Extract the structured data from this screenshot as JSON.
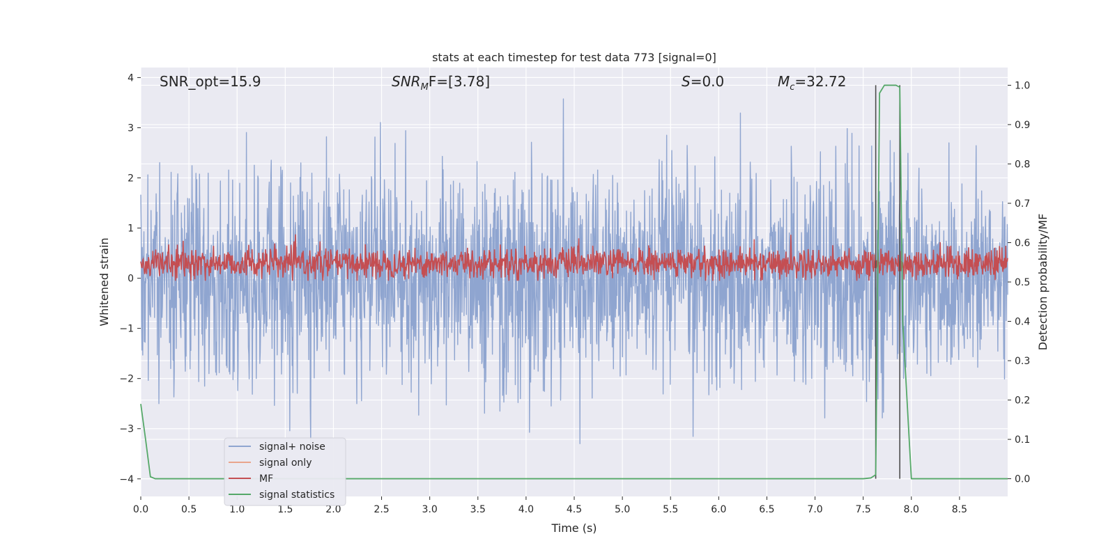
{
  "chart_data": {
    "type": "line",
    "title": "stats at each timestep for test data 773 [signal=0]",
    "xlabel": "Time (s)",
    "ylabel": "Whitened strain",
    "y2label": "Detection probability/MF",
    "xlim": [
      0.0,
      9.0
    ],
    "ylim": [
      -4.35,
      4.2
    ],
    "y2lim": [
      -0.045,
      1.045
    ],
    "xticks": [
      "0.0",
      "0.5",
      "1.0",
      "1.5",
      "2.0",
      "2.5",
      "3.0",
      "3.5",
      "4.0",
      "4.5",
      "5.0",
      "5.5",
      "6.0",
      "6.5",
      "7.0",
      "7.5",
      "8.0",
      "8.5"
    ],
    "yticks": [
      "−4",
      "−3",
      "−2",
      "−1",
      "0",
      "1",
      "2",
      "3",
      "4"
    ],
    "y2ticks": [
      "0.0",
      "0.1",
      "0.2",
      "0.3",
      "0.4",
      "0.5",
      "0.6",
      "0.7",
      "0.8",
      "0.9",
      "1.0"
    ],
    "grid": true,
    "legend_position": "lower-left",
    "annotations": {
      "snr_opt": "SNR_opt=15.9",
      "snr_mf_prefix": "SNR",
      "snr_mf_sub": "M",
      "snr_mf_suffix": "F=[3.78]",
      "s_var": "S",
      "s_value": "=0.0",
      "mc_var": "M",
      "mc_sub": "c",
      "mc_value": "=32.72"
    },
    "series": [
      {
        "name": "signal+ noise",
        "color": "#8fa5d0",
        "axis": "left",
        "envelope": {
          "x_start": 0.0,
          "x_end": 9.0,
          "upper_typical": 2.0,
          "upper_peak": 3.7,
          "lower_typical": -2.0,
          "lower_peak": -3.5
        }
      },
      {
        "name": "signal only",
        "color": "#e9a58c",
        "axis": "left",
        "values": []
      },
      {
        "name": "MF",
        "color": "#c44e52",
        "axis": "left",
        "envelope": {
          "x_start": 0.0,
          "x_end": 9.0,
          "center": 0.3,
          "amplitude_typical": 0.3,
          "upper_peak": 0.95,
          "lower_peak": -0.05
        }
      },
      {
        "name": "signal statistics",
        "color": "#55a868",
        "axis": "right",
        "x": [
          0.0,
          0.05,
          0.1,
          0.15,
          0.5,
          1.0,
          2.0,
          3.0,
          4.0,
          5.0,
          6.0,
          7.0,
          7.5,
          7.58,
          7.63,
          7.67,
          7.72,
          7.78,
          7.84,
          7.88,
          7.91,
          8.0,
          8.02,
          8.5,
          9.0
        ],
        "y": [
          0.19,
          0.1,
          0.005,
          0.0,
          0.0,
          0.0,
          0.0,
          0.0,
          0.0,
          0.0,
          0.0,
          0.0,
          0.0,
          0.002,
          0.01,
          0.98,
          1.0,
          1.0,
          1.0,
          0.995,
          0.4,
          0.0,
          0.0,
          0.0,
          0.0
        ]
      }
    ],
    "vlines": [
      {
        "x": 7.63,
        "y2_range": [
          0.0,
          1.0
        ],
        "color": "#4d4d4d"
      },
      {
        "x": 7.88,
        "y2_range": [
          0.0,
          1.0
        ],
        "color": "#4d4d4d"
      }
    ]
  }
}
